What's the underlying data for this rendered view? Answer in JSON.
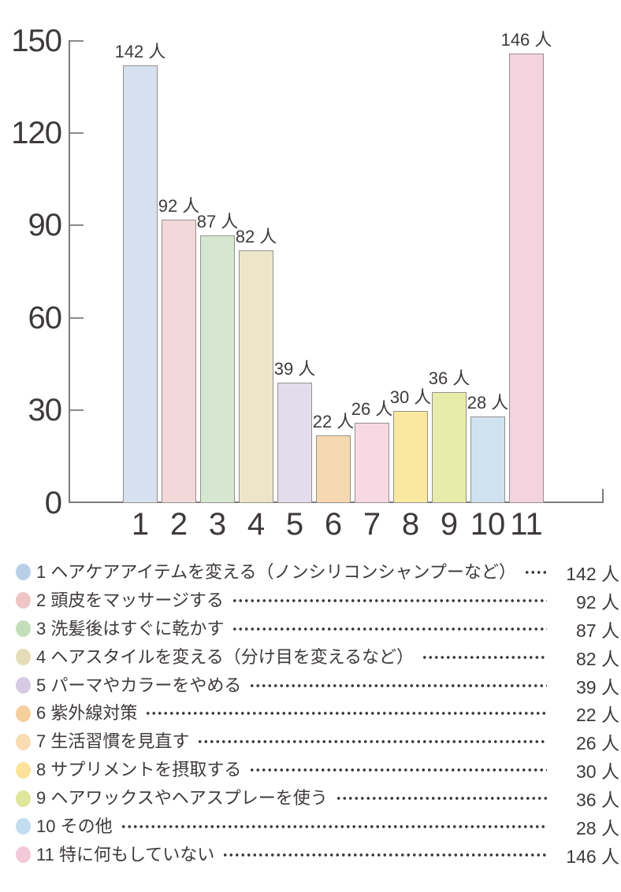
{
  "chart_data": {
    "type": "bar",
    "title": "",
    "xlabel": "",
    "ylabel": "",
    "unit": "人",
    "ylim": [
      0,
      150
    ],
    "grid": false,
    "legend_position": "below",
    "categories": [
      "1",
      "2",
      "3",
      "4",
      "5",
      "6",
      "7",
      "8",
      "9",
      "10",
      "11"
    ],
    "values": [
      142,
      92,
      87,
      82,
      39,
      22,
      26,
      30,
      36,
      28,
      146
    ],
    "bar_labels": [
      "142 人",
      "92 人",
      "87 人",
      "82 人",
      "39 人",
      "22 人",
      "26 人",
      "30 人",
      "36 人",
      "28 人",
      "146 人"
    ],
    "y_ticks": [
      "150",
      "120",
      "90",
      "60",
      "30",
      "0"
    ],
    "bar_colors": [
      "#d7e0ef",
      "#f2d8d8",
      "#d5e7d0",
      "#ece5c8",
      "#e3dcec",
      "#f6d9b0",
      "#f8d9e3",
      "#fae8a0",
      "#e7ecab",
      "#cfe2f0",
      "#f5d3de"
    ],
    "axis_color": "#7e7a7a",
    "text_color": "#3e3a39",
    "legend": {
      "items": [
        {
          "label": "1 ヘアケアアイテムを変える（ノンシリコンシャンプーなど）",
          "value_label": "142 人",
          "color": "#b8cfe7"
        },
        {
          "label": "2 頭皮をマッサージする",
          "value_label": "92 人",
          "color": "#eec6c6"
        },
        {
          "label": "3 洗髪後はすぐに乾かす",
          "value_label": "87 人",
          "color": "#c2dfba"
        },
        {
          "label": "4 ヘアスタイルを変える（分け目を変えるなど）",
          "value_label": "82 人",
          "color": "#e6ddb8"
        },
        {
          "label": "5 パーマやカラーをやめる",
          "value_label": "39 人",
          "color": "#d7cae4"
        },
        {
          "label": "6 紫外線対策",
          "value_label": "22 人",
          "color": "#f6cf9e"
        },
        {
          "label": "7 生活習慣を見直す",
          "value_label": "26 人",
          "color": "#f9dcb4"
        },
        {
          "label": "8 サプリメントを摂取する",
          "value_label": "30 人",
          "color": "#fce39c"
        },
        {
          "label": "9 ヘアワックスやヘアスプレーを使う",
          "value_label": "36 人",
          "color": "#dde69a"
        },
        {
          "label": "10 その他",
          "value_label": "28 人",
          "color": "#c3ddf0"
        },
        {
          "label": "11 特に何もしていない",
          "value_label": "146 人",
          "color": "#f3c8d8"
        }
      ]
    }
  }
}
